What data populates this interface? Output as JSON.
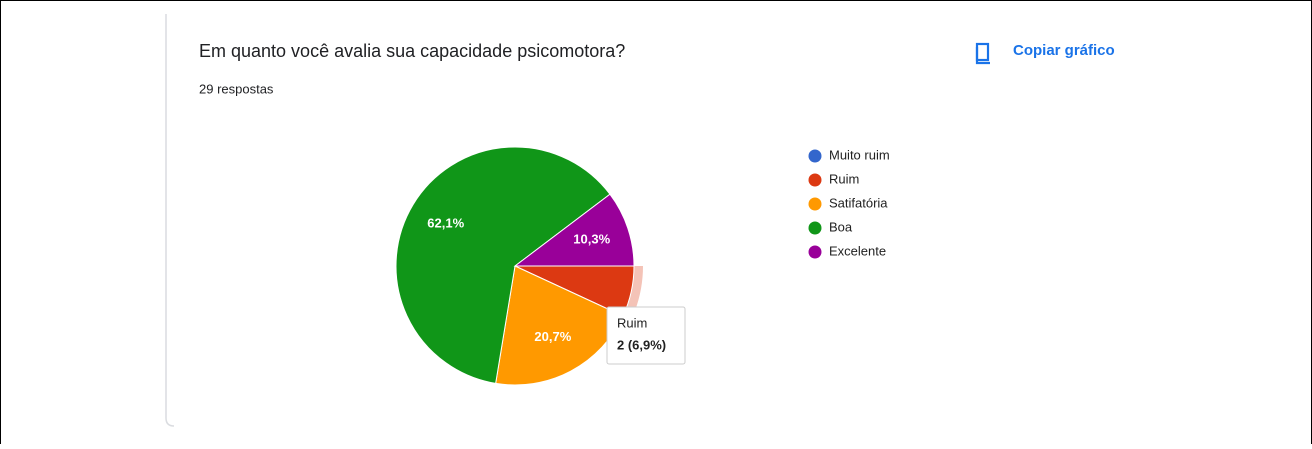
{
  "title": "Em quanto você avalia sua capacidade psicomotora?",
  "subtitle": "29 respostas",
  "copy_button": "Copiar gráfico",
  "chart_data": {
    "type": "pie",
    "categories": [
      "Muito ruim",
      "Ruim",
      "Satifatória",
      "Boa",
      "Excelente"
    ],
    "values": [
      0,
      6.9,
      20.7,
      62.1,
      10.3
    ],
    "value_labels": [
      null,
      null,
      "20,7%",
      "62,1%",
      "10,3%"
    ],
    "colors": [
      "#3366cc",
      "#dc3912",
      "#ff9900",
      "#109618",
      "#990099"
    ],
    "legend": "right",
    "tooltip": {
      "category": "Ruim",
      "text": "2 (6,9%)"
    }
  }
}
